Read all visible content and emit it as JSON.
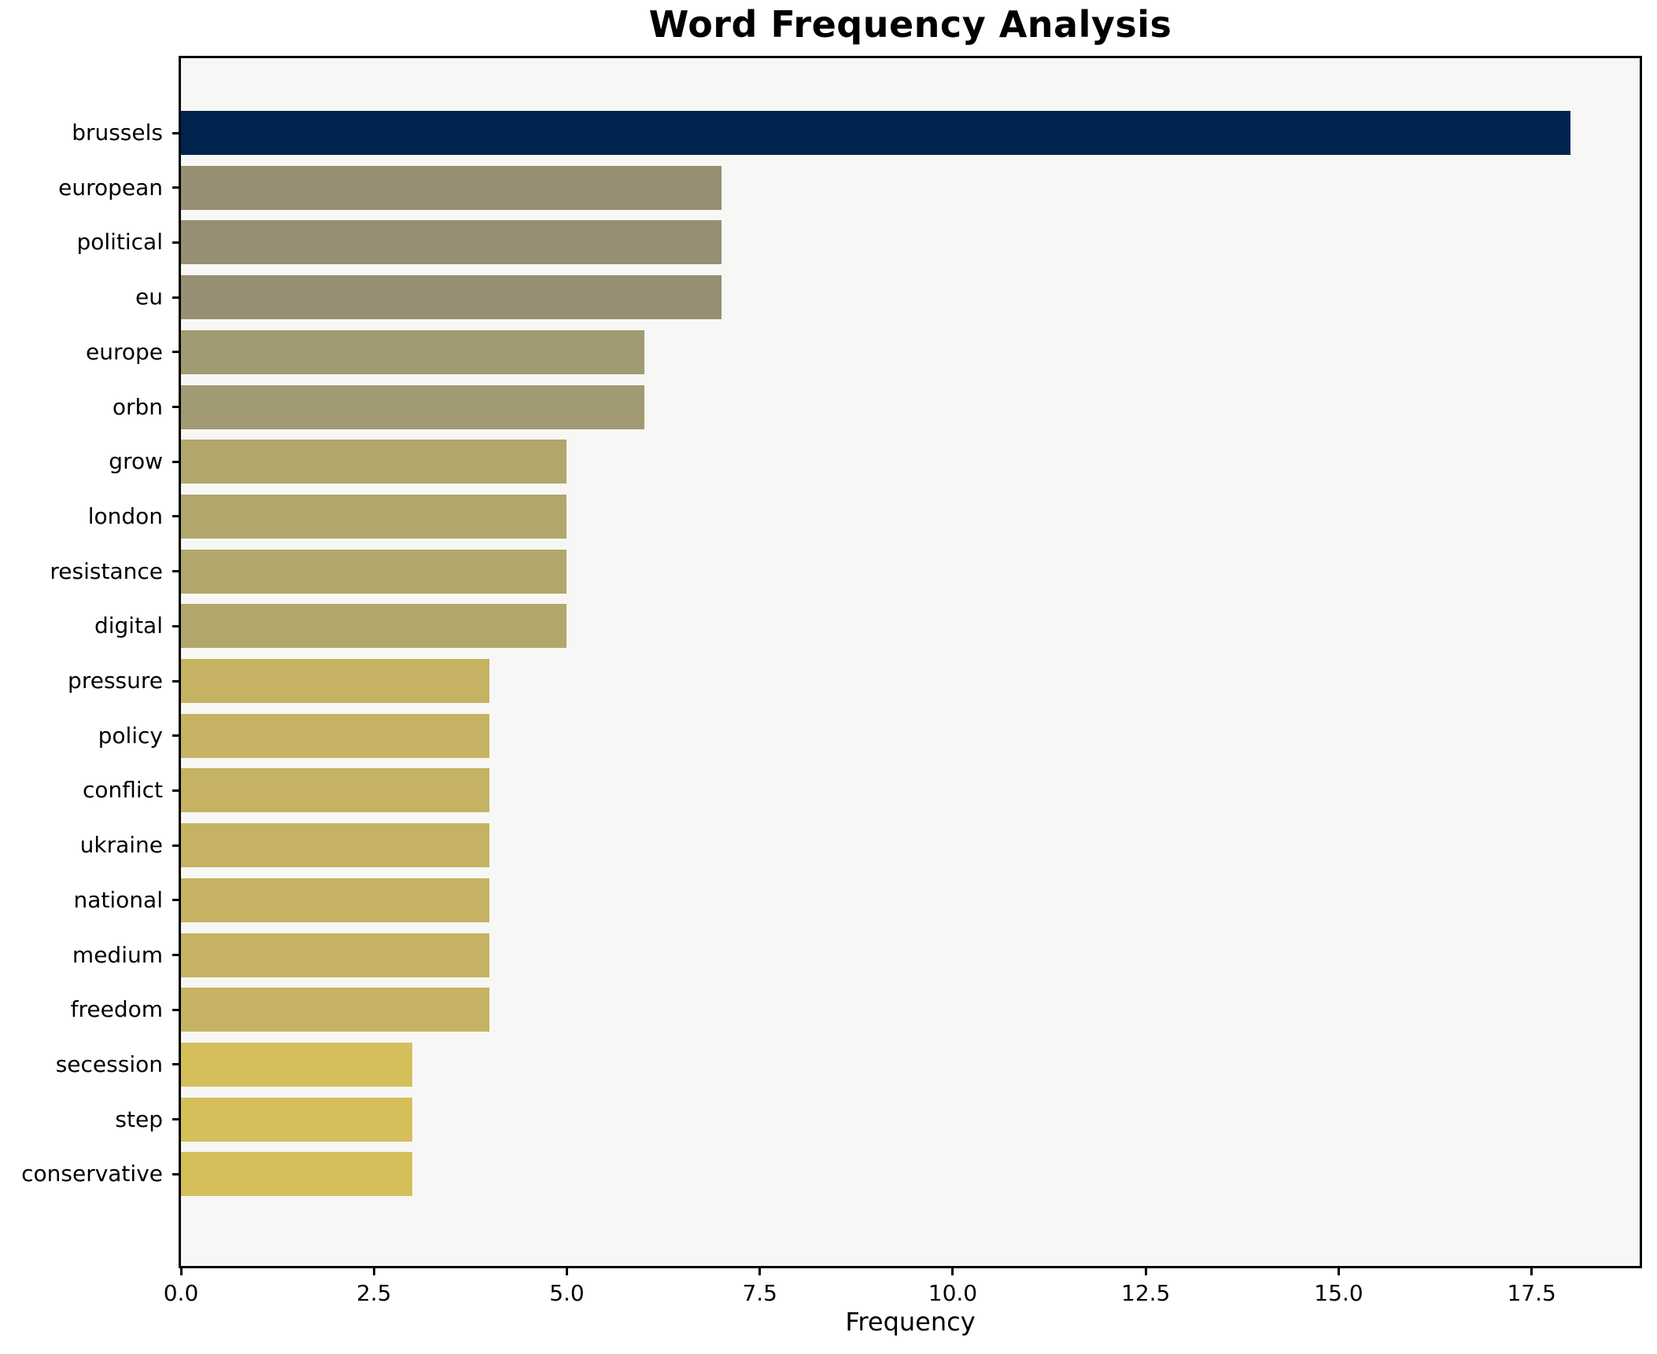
{
  "title": "Word Frequency Analysis",
  "chart_data": {
    "type": "bar",
    "orientation": "horizontal",
    "title": "Word Frequency Analysis",
    "xlabel": "Frequency",
    "ylabel": "",
    "categories": [
      "brussels",
      "european",
      "political",
      "eu",
      "europe",
      "orbn",
      "grow",
      "london",
      "resistance",
      "digital",
      "pressure",
      "policy",
      "conflict",
      "ukraine",
      "national",
      "medium",
      "freedom",
      "secession",
      "step",
      "conservative"
    ],
    "values": [
      18,
      7,
      7,
      7,
      6,
      6,
      5,
      5,
      5,
      5,
      4,
      4,
      4,
      4,
      4,
      4,
      4,
      3,
      3,
      3
    ],
    "bar_colors": [
      "#01244E",
      "#968F74",
      "#968F74",
      "#968F74",
      "#A29A72",
      "#A29A72",
      "#B1A76C",
      "#B1A76C",
      "#B1A76C",
      "#B1A76C",
      "#C5B363",
      "#C5B363",
      "#C5B363",
      "#C5B363",
      "#C5B363",
      "#C5B363",
      "#C5B363",
      "#D5BF5B",
      "#D5BF5B",
      "#D5BF5B"
    ],
    "x_ticks": [
      0.0,
      2.5,
      5.0,
      7.5,
      10.0,
      12.5,
      15.0,
      17.5
    ],
    "x_tick_labels": [
      "0.0",
      "2.5",
      "5.0",
      "7.5",
      "10.0",
      "12.5",
      "15.0",
      "17.5"
    ],
    "xlim": [
      0,
      18.9
    ],
    "grid": false,
    "legend": null,
    "plot_background": "#f7f7f5",
    "figure_background": "#ffffff",
    "spine_color": "#000000",
    "text_color": "#000000"
  }
}
